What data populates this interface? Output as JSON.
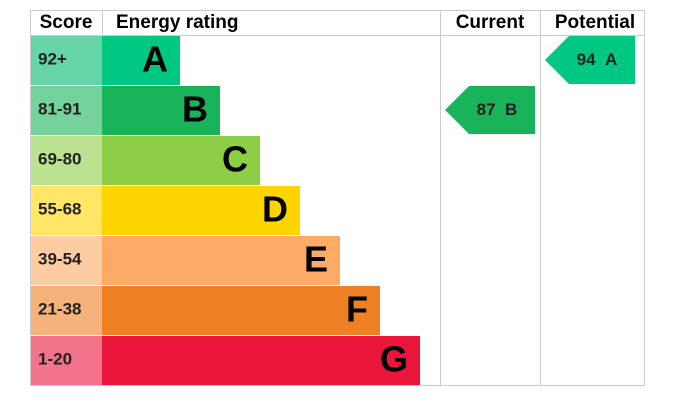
{
  "header": {
    "score": "Score",
    "rating": "Energy rating",
    "current": "Current",
    "potential": "Potential"
  },
  "bands": [
    {
      "score": "92+",
      "letter": "A",
      "color": "#00c781",
      "score_color": "#66d4a6"
    },
    {
      "score": "81-91",
      "letter": "B",
      "color": "#19b459",
      "score_color": "#75d29b"
    },
    {
      "score": "69-80",
      "letter": "C",
      "color": "#8dce46",
      "score_color": "#bbe290"
    },
    {
      "score": "55-68",
      "letter": "D",
      "color": "#ffd500",
      "score_color": "#ffe666"
    },
    {
      "score": "39-54",
      "letter": "E",
      "color": "#fcaa65",
      "score_color": "#fdcca3"
    },
    {
      "score": "21-38",
      "letter": "F",
      "color": "#ef8023",
      "score_color": "#f5b37b"
    },
    {
      "score": "1-20",
      "letter": "G",
      "color": "#e9153b",
      "score_color": "#f2738a"
    }
  ],
  "current": {
    "value": 87,
    "letter": "B"
  },
  "potential": {
    "value": 94,
    "letter": "A"
  }
}
